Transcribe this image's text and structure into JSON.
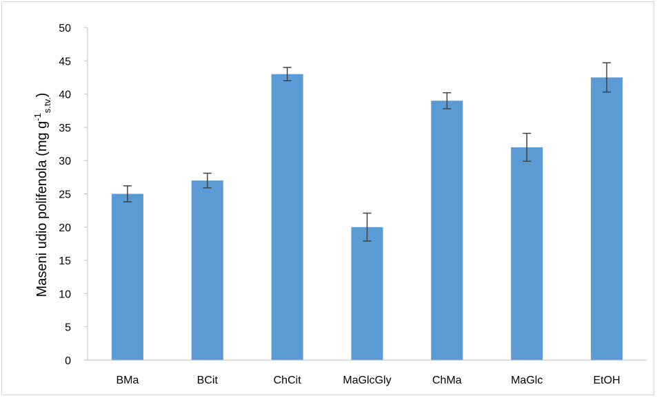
{
  "chart_data": {
    "type": "bar",
    "title": "",
    "xlabel": "",
    "ylabel": "Maseni udio polifenola (mg g",
    "ylabel_sup": "-1",
    "ylabel_sub": "s.tv.",
    "ylabel_close": ")",
    "categories": [
      "BMa",
      "BCit",
      "ChCit",
      "MaGlcGly",
      "ChMa",
      "MaGlc",
      "EtOH"
    ],
    "values": [
      25,
      27,
      43,
      20,
      39,
      32,
      42.5
    ],
    "errors": [
      1.2,
      1.1,
      1.0,
      2.1,
      1.2,
      2.1,
      2.2
    ],
    "ylim": [
      0,
      50
    ],
    "yticks": [
      0,
      5,
      10,
      15,
      20,
      25,
      30,
      35,
      40,
      45,
      50
    ],
    "grid": false,
    "legend": "none",
    "bar_color": "#5b9bd5",
    "error_color": "#404040"
  }
}
